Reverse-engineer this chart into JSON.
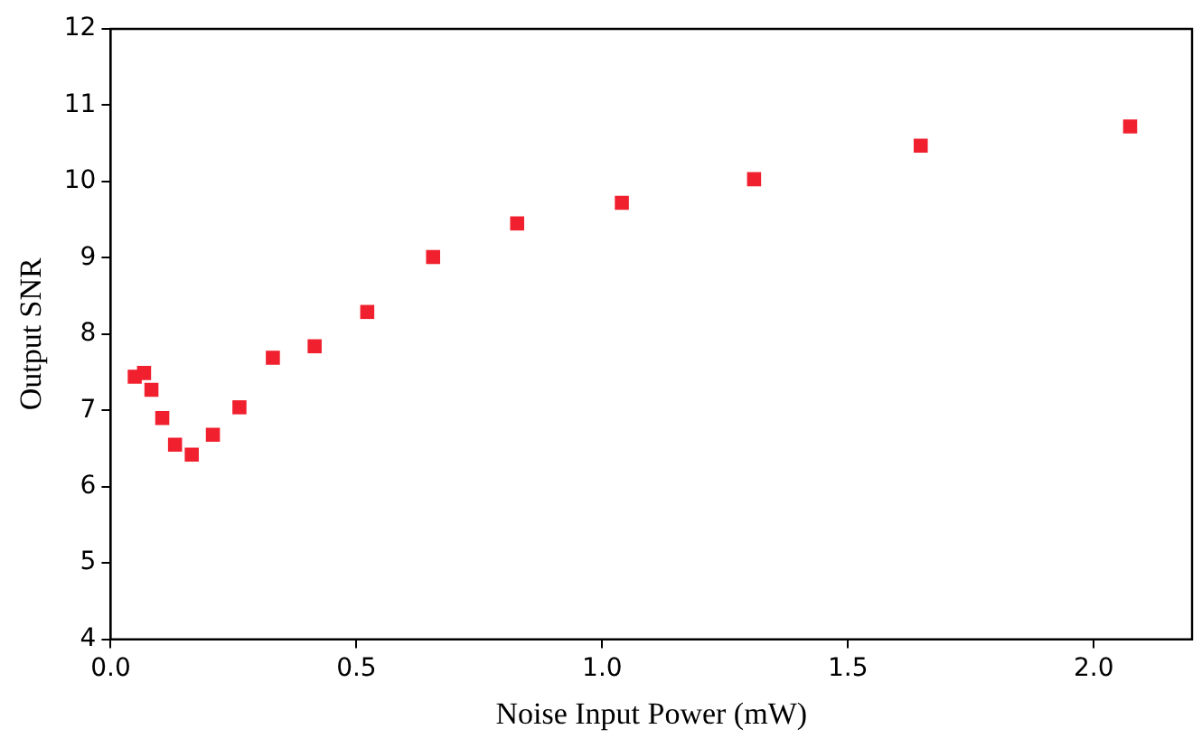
{
  "chart_data": {
    "type": "scatter",
    "xlabel": "Noise Input Power (mW)",
    "ylabel": "Output SNR",
    "x": [
      0.049,
      0.068,
      0.083,
      0.105,
      0.131,
      0.165,
      0.208,
      0.262,
      0.33,
      0.415,
      0.522,
      0.656,
      0.827,
      1.04,
      1.309,
      1.648,
      2.074
    ],
    "series": [
      {
        "color": "#f0202e",
        "values": [
          7.44,
          7.49,
          7.27,
          6.9,
          6.55,
          6.42,
          6.68,
          7.04,
          7.69,
          7.84,
          8.29,
          9.01,
          9.45,
          9.72,
          10.03,
          10.47,
          10.72
        ]
      }
    ],
    "xlim": [
      0,
      2.2
    ],
    "xticks": [
      {
        "value": 0,
        "label": "0.0"
      },
      {
        "value": 0.5,
        "label": "0.5"
      },
      {
        "value": 1,
        "label": "1.0"
      },
      {
        "value": 1.5,
        "label": "1.5"
      },
      {
        "value": 2,
        "label": "2.0"
      }
    ],
    "ylim": [
      4,
      12
    ],
    "yticks": [
      4,
      5,
      6,
      7,
      8,
      9,
      10,
      11,
      12
    ],
    "grid": false,
    "legend": false,
    "marker": "square"
  }
}
